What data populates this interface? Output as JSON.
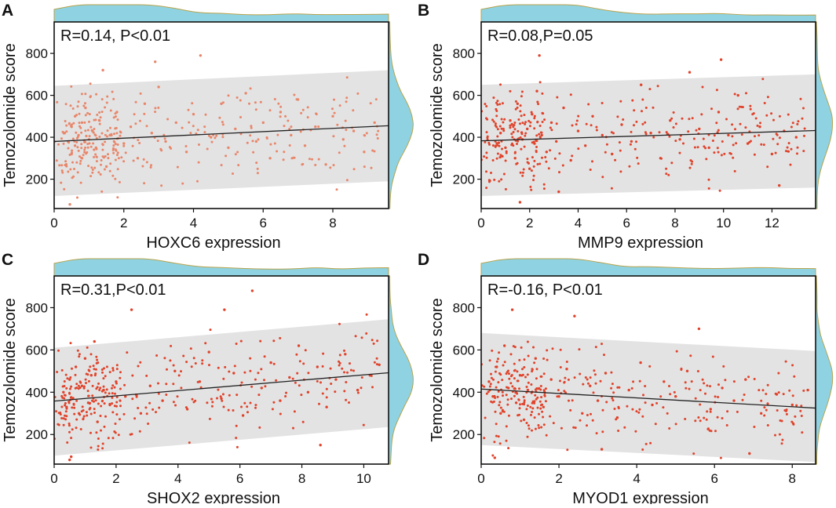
{
  "figure": {
    "panels": [
      "A",
      "B",
      "C",
      "D"
    ]
  },
  "colors": {
    "point": "#e0432b",
    "point_light": "#e8866a",
    "band": "#e3e3e3",
    "density_fill": "#8fd3e3",
    "density_stroke": "#b8a24a",
    "line": "#222222",
    "axis": "#111111"
  },
  "chart_data": [
    {
      "type": "scatter",
      "panel_label": "A",
      "annotation": "R=0.14, P<0.01",
      "xlabel": "HOXC6 expression",
      "ylabel": "Temozolomide  score",
      "xlim": [
        0,
        9.6
      ],
      "ylim": [
        60,
        950
      ],
      "xticks": [
        0,
        2,
        4,
        6,
        8
      ],
      "yticks": [
        200,
        400,
        600,
        800
      ],
      "fit": {
        "x": [
          0,
          9.6
        ],
        "y": [
          380,
          455
        ]
      },
      "band": {
        "x": [
          0,
          9.6
        ],
        "upper": [
          645,
          720
        ],
        "lower": [
          120,
          190
        ]
      },
      "point_color": "#e8866a",
      "samples": [
        {
          "x": 0.3,
          "y": 420
        },
        {
          "x": 0.4,
          "y": 380
        },
        {
          "x": 0.5,
          "y": 450
        },
        {
          "x": 0.5,
          "y": 320
        },
        {
          "x": 0.6,
          "y": 500
        },
        {
          "x": 0.6,
          "y": 360
        },
        {
          "x": 0.7,
          "y": 410
        },
        {
          "x": 0.8,
          "y": 470
        },
        {
          "x": 0.8,
          "y": 300
        },
        {
          "x": 0.9,
          "y": 540
        },
        {
          "x": 1.0,
          "y": 390
        },
        {
          "x": 1.1,
          "y": 430
        },
        {
          "x": 1.2,
          "y": 350
        },
        {
          "x": 1.3,
          "y": 480
        },
        {
          "x": 1.5,
          "y": 260
        },
        {
          "x": 1.6,
          "y": 410
        },
        {
          "x": 1.8,
          "y": 520
        },
        {
          "x": 2.0,
          "y": 370
        },
        {
          "x": 2.2,
          "y": 450
        },
        {
          "x": 2.4,
          "y": 300
        },
        {
          "x": 2.6,
          "y": 560
        },
        {
          "x": 2.8,
          "y": 420
        },
        {
          "x": 3.0,
          "y": 640
        },
        {
          "x": 3.2,
          "y": 380
        },
        {
          "x": 3.5,
          "y": 470
        },
        {
          "x": 3.8,
          "y": 330
        },
        {
          "x": 4.0,
          "y": 510
        },
        {
          "x": 4.2,
          "y": 790
        },
        {
          "x": 4.5,
          "y": 400
        },
        {
          "x": 4.8,
          "y": 560
        },
        {
          "x": 5.0,
          "y": 350
        },
        {
          "x": 5.2,
          "y": 440
        },
        {
          "x": 5.5,
          "y": 610
        },
        {
          "x": 5.8,
          "y": 380
        },
        {
          "x": 6.0,
          "y": 470
        },
        {
          "x": 6.2,
          "y": 300
        },
        {
          "x": 6.5,
          "y": 520
        },
        {
          "x": 6.8,
          "y": 410
        },
        {
          "x": 7.0,
          "y": 580
        },
        {
          "x": 7.2,
          "y": 360
        },
        {
          "x": 7.5,
          "y": 450
        },
        {
          "x": 7.8,
          "y": 270
        },
        {
          "x": 8.0,
          "y": 500
        },
        {
          "x": 8.3,
          "y": 390
        },
        {
          "x": 8.6,
          "y": 430
        },
        {
          "x": 8.9,
          "y": 330
        },
        {
          "x": 9.2,
          "y": 470
        },
        {
          "x": 0.45,
          "y": 80
        },
        {
          "x": 1.4,
          "y": 720
        },
        {
          "x": 2.9,
          "y": 760
        }
      ]
    },
    {
      "type": "scatter",
      "panel_label": "B",
      "annotation": "R=0.08,P=0.05",
      "xlabel": "MMP9 expression",
      "ylabel": "Temozolomide  score",
      "xlim": [
        0,
        13.8
      ],
      "ylim": [
        60,
        950
      ],
      "xticks": [
        0,
        2,
        4,
        6,
        8,
        10,
        12
      ],
      "yticks": [
        200,
        400,
        600,
        800
      ],
      "fit": {
        "x": [
          0,
          13.8
        ],
        "y": [
          383,
          432
        ]
      },
      "band": {
        "x": [
          0,
          13.8
        ],
        "upper": [
          650,
          700
        ],
        "lower": [
          120,
          160
        ]
      },
      "point_color": "#e0432b",
      "samples": [
        {
          "x": 0.8,
          "y": 420
        },
        {
          "x": 1.0,
          "y": 350
        },
        {
          "x": 1.2,
          "y": 480
        },
        {
          "x": 1.4,
          "y": 300
        },
        {
          "x": 1.5,
          "y": 560
        },
        {
          "x": 1.7,
          "y": 390
        },
        {
          "x": 1.9,
          "y": 440
        },
        {
          "x": 2.0,
          "y": 250
        },
        {
          "x": 2.1,
          "y": 510
        },
        {
          "x": 2.2,
          "y": 370
        },
        {
          "x": 2.3,
          "y": 620
        },
        {
          "x": 2.5,
          "y": 410
        },
        {
          "x": 2.7,
          "y": 330
        },
        {
          "x": 2.9,
          "y": 470
        },
        {
          "x": 3.1,
          "y": 380
        },
        {
          "x": 3.4,
          "y": 540
        },
        {
          "x": 3.7,
          "y": 290
        },
        {
          "x": 4.0,
          "y": 430
        },
        {
          "x": 4.3,
          "y": 360
        },
        {
          "x": 4.6,
          "y": 500
        },
        {
          "x": 5.0,
          "y": 410
        },
        {
          "x": 5.4,
          "y": 320
        },
        {
          "x": 5.8,
          "y": 460
        },
        {
          "x": 6.2,
          "y": 380
        },
        {
          "x": 6.6,
          "y": 650
        },
        {
          "x": 7.0,
          "y": 420
        },
        {
          "x": 7.4,
          "y": 300
        },
        {
          "x": 7.8,
          "y": 480
        },
        {
          "x": 8.2,
          "y": 390
        },
        {
          "x": 8.6,
          "y": 710
        },
        {
          "x": 9.0,
          "y": 440
        },
        {
          "x": 9.4,
          "y": 350
        },
        {
          "x": 9.8,
          "y": 520
        },
        {
          "x": 10.2,
          "y": 410
        },
        {
          "x": 10.6,
          "y": 600
        },
        {
          "x": 11.0,
          "y": 370
        },
        {
          "x": 11.5,
          "y": 450
        },
        {
          "x": 12.0,
          "y": 320
        },
        {
          "x": 12.5,
          "y": 430
        },
        {
          "x": 13.0,
          "y": 400
        },
        {
          "x": 1.6,
          "y": 90
        },
        {
          "x": 2.4,
          "y": 790
        },
        {
          "x": 3.2,
          "y": 140
        },
        {
          "x": 9.9,
          "y": 770
        },
        {
          "x": 12.3,
          "y": 170
        }
      ]
    },
    {
      "type": "scatter",
      "panel_label": "C",
      "annotation": "R=0.31,P<0.01",
      "xlabel": "SHOX2 expression",
      "ylabel": "Temozolomide  score",
      "xlim": [
        0,
        10.8
      ],
      "ylim": [
        60,
        950
      ],
      "xticks": [
        0,
        2,
        4,
        6,
        8,
        10
      ],
      "yticks": [
        200,
        400,
        600,
        800
      ],
      "fit": {
        "x": [
          0,
          10.8
        ],
        "y": [
          358,
          492
        ]
      },
      "band": {
        "x": [
          0,
          10.8
        ],
        "upper": [
          610,
          745
        ],
        "lower": [
          100,
          235
        ]
      },
      "point_color": "#e0432b",
      "samples": [
        {
          "x": 0.3,
          "y": 400
        },
        {
          "x": 0.4,
          "y": 330
        },
        {
          "x": 0.5,
          "y": 460
        },
        {
          "x": 0.5,
          "y": 80
        },
        {
          "x": 0.6,
          "y": 370
        },
        {
          "x": 0.7,
          "y": 520
        },
        {
          "x": 0.8,
          "y": 300
        },
        {
          "x": 0.9,
          "y": 430
        },
        {
          "x": 1.0,
          "y": 560
        },
        {
          "x": 1.1,
          "y": 350
        },
        {
          "x": 1.2,
          "y": 480
        },
        {
          "x": 1.4,
          "y": 260
        },
        {
          "x": 1.6,
          "y": 410
        },
        {
          "x": 1.8,
          "y": 340
        },
        {
          "x": 2.0,
          "y": 450
        },
        {
          "x": 2.3,
          "y": 380
        },
        {
          "x": 2.5,
          "y": 790
        },
        {
          "x": 2.8,
          "y": 300
        },
        {
          "x": 3.1,
          "y": 430
        },
        {
          "x": 3.5,
          "y": 360
        },
        {
          "x": 3.9,
          "y": 500
        },
        {
          "x": 4.3,
          "y": 320
        },
        {
          "x": 4.7,
          "y": 450
        },
        {
          "x": 5.0,
          "y": 590
        },
        {
          "x": 5.4,
          "y": 370
        },
        {
          "x": 5.8,
          "y": 490
        },
        {
          "x": 6.1,
          "y": 290
        },
        {
          "x": 6.4,
          "y": 880
        },
        {
          "x": 6.7,
          "y": 420
        },
        {
          "x": 7.0,
          "y": 540
        },
        {
          "x": 7.3,
          "y": 360
        },
        {
          "x": 7.6,
          "y": 470
        },
        {
          "x": 7.9,
          "y": 620
        },
        {
          "x": 8.2,
          "y": 400
        },
        {
          "x": 8.5,
          "y": 520
        },
        {
          "x": 8.8,
          "y": 330
        },
        {
          "x": 9.1,
          "y": 460
        },
        {
          "x": 9.4,
          "y": 580
        },
        {
          "x": 9.8,
          "y": 410
        },
        {
          "x": 10.2,
          "y": 480
        },
        {
          "x": 10.5,
          "y": 530
        },
        {
          "x": 0.55,
          "y": 95
        },
        {
          "x": 1.3,
          "y": 640
        },
        {
          "x": 5.5,
          "y": 790
        },
        {
          "x": 8.6,
          "y": 150
        }
      ]
    },
    {
      "type": "scatter",
      "panel_label": "D",
      "annotation": "R=-0.16, P<0.01",
      "xlabel": "MYOD1 expression",
      "ylabel": "Temozolomide  score",
      "xlim": [
        0,
        8.6
      ],
      "ylim": [
        60,
        950
      ],
      "xticks": [
        0,
        2,
        4,
        6,
        8
      ],
      "yticks": [
        200,
        400,
        600,
        800
      ],
      "fit": {
        "x": [
          0,
          8.6
        ],
        "y": [
          415,
          325
        ]
      },
      "band": {
        "x": [
          0,
          8.6
        ],
        "upper": [
          680,
          595
        ],
        "lower": [
          150,
          70
        ]
      },
      "point_color": "#e0432b",
      "samples": [
        {
          "x": 0.2,
          "y": 450
        },
        {
          "x": 0.3,
          "y": 380
        },
        {
          "x": 0.4,
          "y": 520
        },
        {
          "x": 0.5,
          "y": 300
        },
        {
          "x": 0.6,
          "y": 620
        },
        {
          "x": 0.7,
          "y": 420
        },
        {
          "x": 0.8,
          "y": 790
        },
        {
          "x": 0.9,
          "y": 350
        },
        {
          "x": 1.0,
          "y": 480
        },
        {
          "x": 1.1,
          "y": 270
        },
        {
          "x": 1.2,
          "y": 410
        },
        {
          "x": 1.4,
          "y": 560
        },
        {
          "x": 1.6,
          "y": 330
        },
        {
          "x": 1.8,
          "y": 460
        },
        {
          "x": 2.0,
          "y": 380
        },
        {
          "x": 2.2,
          "y": 510
        },
        {
          "x": 2.4,
          "y": 760
        },
        {
          "x": 2.6,
          "y": 300
        },
        {
          "x": 2.8,
          "y": 430
        },
        {
          "x": 3.0,
          "y": 360
        },
        {
          "x": 3.2,
          "y": 490
        },
        {
          "x": 3.5,
          "y": 280
        },
        {
          "x": 3.8,
          "y": 410
        },
        {
          "x": 4.1,
          "y": 540
        },
        {
          "x": 4.4,
          "y": 340
        },
        {
          "x": 4.7,
          "y": 450
        },
        {
          "x": 5.0,
          "y": 380
        },
        {
          "x": 5.3,
          "y": 500
        },
        {
          "x": 5.6,
          "y": 700
        },
        {
          "x": 5.9,
          "y": 320
        },
        {
          "x": 6.2,
          "y": 420
        },
        {
          "x": 6.5,
          "y": 360
        },
        {
          "x": 6.8,
          "y": 460
        },
        {
          "x": 7.2,
          "y": 300
        },
        {
          "x": 7.6,
          "y": 390
        },
        {
          "x": 8.0,
          "y": 340
        },
        {
          "x": 8.4,
          "y": 410
        },
        {
          "x": 0.35,
          "y": 90
        },
        {
          "x": 3.1,
          "y": 130
        },
        {
          "x": 6.9,
          "y": 110
        }
      ]
    }
  ]
}
